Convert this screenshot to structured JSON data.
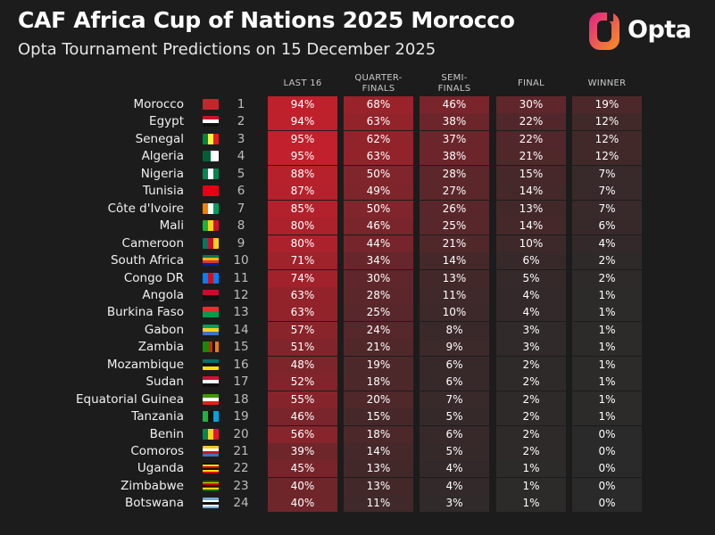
{
  "header": {
    "title": "CAF Africa Cup of Nations 2025 Morocco",
    "subtitle": "Opta Tournament Predictions on 15 December 2025",
    "logo_text": "Opta"
  },
  "columns": [
    "LAST 16",
    "QUARTER-\nFINALS",
    "SEMI-\nFINALS",
    "FINAL",
    "WINNER"
  ],
  "colors": {
    "background": "#1c1c1c",
    "cell_low": "#2a2a2a",
    "cell_high": "#c8202c"
  },
  "rows": [
    {
      "team": "Morocco",
      "rank": "1",
      "values": [
        "94%",
        "68%",
        "46%",
        "30%",
        "19%"
      ],
      "flag": [
        "#c1272d",
        "#c1272d",
        "#c1272d"
      ],
      "flag_icon": "morocco-flag-icon"
    },
    {
      "team": "Egypt",
      "rank": "2",
      "values": [
        "94%",
        "63%",
        "38%",
        "22%",
        "12%"
      ],
      "flag": [
        "#ce1126",
        "#ffffff",
        "#111111"
      ],
      "flag_dir": "h",
      "flag_icon": "egypt-flag-icon"
    },
    {
      "team": "Senegal",
      "rank": "3",
      "values": [
        "95%",
        "62%",
        "37%",
        "22%",
        "12%"
      ],
      "flag": [
        "#00853f",
        "#fdef42",
        "#e31b23"
      ],
      "flag_icon": "senegal-flag-icon"
    },
    {
      "team": "Algeria",
      "rank": "4",
      "values": [
        "95%",
        "63%",
        "38%",
        "21%",
        "12%"
      ],
      "flag": [
        "#006233",
        "#ffffff"
      ],
      "flag_icon": "algeria-flag-icon"
    },
    {
      "team": "Nigeria",
      "rank": "5",
      "values": [
        "88%",
        "50%",
        "28%",
        "15%",
        "7%"
      ],
      "flag": [
        "#008751",
        "#ffffff",
        "#008751"
      ],
      "flag_icon": "nigeria-flag-icon"
    },
    {
      "team": "Tunisia",
      "rank": "6",
      "values": [
        "87%",
        "49%",
        "27%",
        "14%",
        "7%"
      ],
      "flag": [
        "#e70013",
        "#e70013",
        "#e70013"
      ],
      "flag_icon": "tunisia-flag-icon"
    },
    {
      "team": "Côte d'Ivoire",
      "rank": "7",
      "values": [
        "85%",
        "50%",
        "26%",
        "13%",
        "7%"
      ],
      "flag": [
        "#f77f00",
        "#ffffff",
        "#009e60"
      ],
      "flag_icon": "ivory-coast-flag-icon"
    },
    {
      "team": "Mali",
      "rank": "8",
      "values": [
        "80%",
        "46%",
        "25%",
        "14%",
        "6%"
      ],
      "flag": [
        "#14b53a",
        "#fcd116",
        "#ce1126"
      ],
      "flag_icon": "mali-flag-icon"
    },
    {
      "team": "Cameroon",
      "rank": "9",
      "values": [
        "80%",
        "44%",
        "21%",
        "10%",
        "4%"
      ],
      "flag": [
        "#007a5e",
        "#ce1126",
        "#fcd116"
      ],
      "flag_icon": "cameroon-flag-icon"
    },
    {
      "team": "South Africa",
      "rank": "10",
      "values": [
        "71%",
        "34%",
        "14%",
        "6%",
        "2%"
      ],
      "flag": [
        "#007a4d",
        "#ffb612",
        "#de3831",
        "#002395"
      ],
      "flag_dir": "h",
      "flag_icon": "south-africa-flag-icon"
    },
    {
      "team": "Congo DR",
      "rank": "11",
      "values": [
        "74%",
        "30%",
        "13%",
        "5%",
        "2%"
      ],
      "flag": [
        "#007fff",
        "#ce1021",
        "#007fff"
      ],
      "flag_icon": "dr-congo-flag-icon"
    },
    {
      "team": "Angola",
      "rank": "12",
      "values": [
        "63%",
        "28%",
        "11%",
        "4%",
        "1%"
      ],
      "flag": [
        "#cc092f",
        "#111111"
      ],
      "flag_dir": "h",
      "flag_icon": "angola-flag-icon"
    },
    {
      "team": "Burkina Faso",
      "rank": "13",
      "values": [
        "63%",
        "25%",
        "10%",
        "4%",
        "1%"
      ],
      "flag": [
        "#ef2b2d",
        "#009e49"
      ],
      "flag_dir": "h",
      "flag_icon": "burkina-faso-flag-icon"
    },
    {
      "team": "Gabon",
      "rank": "14",
      "values": [
        "57%",
        "24%",
        "8%",
        "3%",
        "1%"
      ],
      "flag": [
        "#009e60",
        "#fcd116",
        "#3a75c4"
      ],
      "flag_dir": "h",
      "flag_icon": "gabon-flag-icon"
    },
    {
      "team": "Zambia",
      "rank": "15",
      "values": [
        "51%",
        "21%",
        "9%",
        "3%",
        "1%"
      ],
      "flag": [
        "#198a00",
        "#198a00",
        "#de2010",
        "#111111",
        "#ef7d00"
      ],
      "flag_icon": "zambia-flag-icon"
    },
    {
      "team": "Mozambique",
      "rank": "16",
      "values": [
        "48%",
        "19%",
        "6%",
        "2%",
        "1%"
      ],
      "flag": [
        "#007168",
        "#111111",
        "#fce100"
      ],
      "flag_dir": "h",
      "flag_icon": "mozambique-flag-icon"
    },
    {
      "team": "Sudan",
      "rank": "17",
      "values": [
        "52%",
        "18%",
        "6%",
        "2%",
        "1%"
      ],
      "flag": [
        "#d21034",
        "#ffffff",
        "#111111"
      ],
      "flag_dir": "h",
      "flag_icon": "sudan-flag-icon"
    },
    {
      "team": "Equatorial Guinea",
      "rank": "18",
      "values": [
        "55%",
        "20%",
        "7%",
        "2%",
        "1%"
      ],
      "flag": [
        "#3e9a00",
        "#ffffff",
        "#e32118"
      ],
      "flag_dir": "h",
      "flag_icon": "equatorial-guinea-flag-icon"
    },
    {
      "team": "Tanzania",
      "rank": "19",
      "values": [
        "46%",
        "15%",
        "5%",
        "2%",
        "1%"
      ],
      "flag": [
        "#1eb53a",
        "#111111",
        "#00a3dd"
      ],
      "flag_icon": "tanzania-flag-icon"
    },
    {
      "team": "Benin",
      "rank": "20",
      "values": [
        "56%",
        "18%",
        "6%",
        "2%",
        "0%"
      ],
      "flag": [
        "#008751",
        "#fcd116",
        "#e8112d"
      ],
      "flag_icon": "benin-flag-icon"
    },
    {
      "team": "Comoros",
      "rank": "21",
      "values": [
        "39%",
        "14%",
        "5%",
        "2%",
        "0%"
      ],
      "flag": [
        "#ffc61e",
        "#ffffff",
        "#ce1126",
        "#3a75c4"
      ],
      "flag_dir": "h",
      "flag_icon": "comoros-flag-icon"
    },
    {
      "team": "Uganda",
      "rank": "22",
      "values": [
        "45%",
        "13%",
        "4%",
        "1%",
        "0%"
      ],
      "flag": [
        "#111111",
        "#fcdc04",
        "#d90000",
        "#111111",
        "#fcdc04",
        "#d90000"
      ],
      "flag_dir": "h",
      "flag_icon": "uganda-flag-icon"
    },
    {
      "team": "Zimbabwe",
      "rank": "23",
      "values": [
        "40%",
        "13%",
        "4%",
        "1%",
        "0%"
      ],
      "flag": [
        "#006400",
        "#ffd200",
        "#d40000",
        "#111111",
        "#d40000",
        "#ffd200",
        "#006400"
      ],
      "flag_dir": "h",
      "flag_icon": "zimbabwe-flag-icon"
    },
    {
      "team": "Botswana",
      "rank": "24",
      "values": [
        "40%",
        "11%",
        "3%",
        "1%",
        "0%"
      ],
      "flag": [
        "#75aadb",
        "#ffffff",
        "#111111",
        "#ffffff",
        "#75aadb"
      ],
      "flag_dir": "h",
      "flag_icon": "botswana-flag-icon"
    }
  ]
}
